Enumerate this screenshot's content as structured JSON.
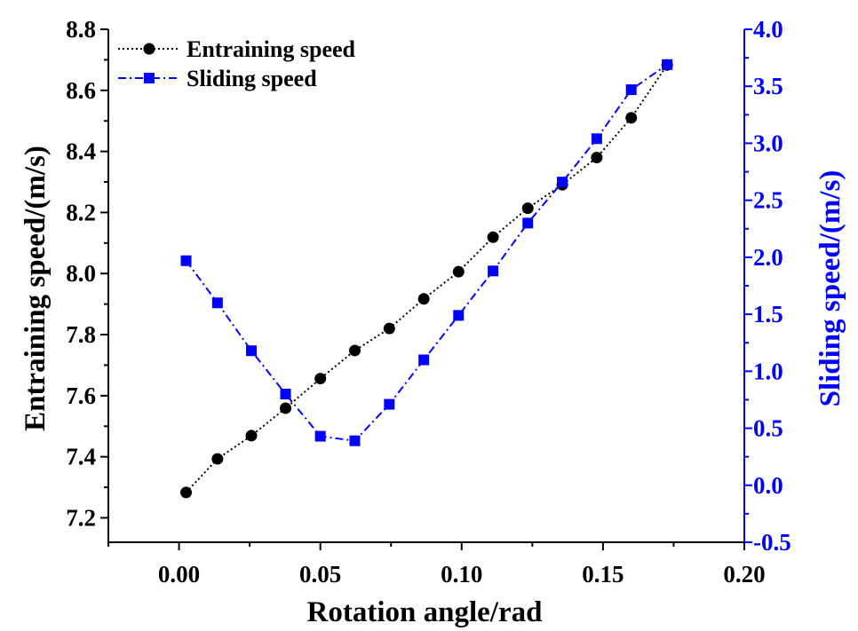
{
  "chart_data": {
    "type": "line",
    "title": "",
    "xlabel": "Rotation angle/rad",
    "ylabel": "Entraining speed/(m/s)",
    "y2label": "Sliding speed/(m/s)",
    "xlim": [
      -0.025,
      0.2
    ],
    "ylim": [
      7.12,
      8.8
    ],
    "y2lim": [
      -0.5,
      4.0
    ],
    "x_ticks": [
      "0.00",
      "0.05",
      "0.10",
      "0.15",
      "0.20"
    ],
    "y_ticks": [
      "7.2",
      "7.4",
      "7.6",
      "7.8",
      "8.0",
      "8.2",
      "8.4",
      "8.6",
      "8.8"
    ],
    "y2_ticks": [
      "-0.5",
      "0.0",
      "0.5",
      "1.0",
      "1.5",
      "2.0",
      "2.5",
      "3.0",
      "3.5",
      "4.0"
    ],
    "x": [
      0.0025,
      0.0136,
      0.0256,
      0.0377,
      0.05,
      0.0622,
      0.0744,
      0.0866,
      0.0989,
      0.1111,
      0.1234,
      0.1356,
      0.1478,
      0.16,
      0.1727
    ],
    "series": [
      {
        "name": "Entraining speed",
        "axis": "left",
        "color": "#000000",
        "marker": "circle",
        "line_style": "dotted",
        "values": [
          7.283,
          7.393,
          7.469,
          7.559,
          7.656,
          7.748,
          7.82,
          7.917,
          8.006,
          8.119,
          8.214,
          8.291,
          8.38,
          8.51,
          8.683
        ]
      },
      {
        "name": "Sliding speed",
        "axis": "right",
        "color": "#0000ff",
        "marker": "square",
        "line_style": "dash-dot",
        "values": [
          1.97,
          1.6,
          1.18,
          0.8,
          0.43,
          0.39,
          0.71,
          1.1,
          1.49,
          1.88,
          2.3,
          2.66,
          3.04,
          3.47,
          3.69
        ]
      }
    ],
    "legend_position": "top-left",
    "grid": false
  }
}
